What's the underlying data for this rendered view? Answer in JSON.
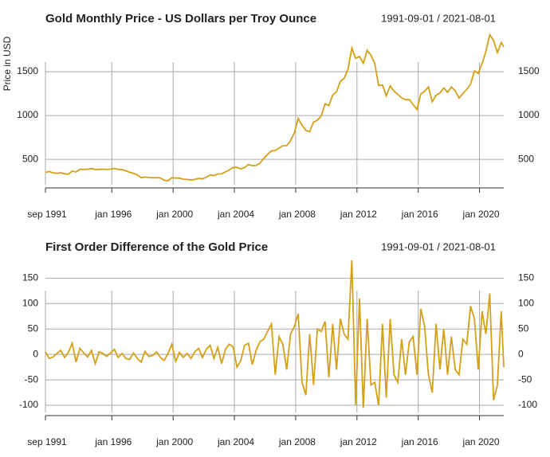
{
  "chart_data": [
    {
      "type": "line",
      "title": "Gold Monthly Price - US Dollars per Troy Ounce",
      "subtitle": "1991-09-01 / 2021-08-01",
      "y_label": "Price in USD",
      "color": "#d4a017",
      "grid": true,
      "x": [
        "1991-09",
        "1991-12",
        "1992-03",
        "1992-06",
        "1992-09",
        "1992-12",
        "1993-03",
        "1993-06",
        "1993-09",
        "1993-12",
        "1994-03",
        "1994-06",
        "1994-09",
        "1994-12",
        "1995-03",
        "1995-06",
        "1995-09",
        "1995-12",
        "1996-03",
        "1996-06",
        "1996-09",
        "1996-12",
        "1997-03",
        "1997-06",
        "1997-09",
        "1997-12",
        "1998-03",
        "1998-06",
        "1998-09",
        "1998-12",
        "1999-03",
        "1999-06",
        "1999-09",
        "1999-12",
        "2000-03",
        "2000-06",
        "2000-09",
        "2000-12",
        "2001-03",
        "2001-06",
        "2001-09",
        "2001-12",
        "2002-03",
        "2002-06",
        "2002-09",
        "2002-12",
        "2003-03",
        "2003-06",
        "2003-09",
        "2003-12",
        "2004-03",
        "2004-06",
        "2004-09",
        "2004-12",
        "2005-03",
        "2005-06",
        "2005-09",
        "2005-12",
        "2006-03",
        "2006-06",
        "2006-09",
        "2006-12",
        "2007-03",
        "2007-06",
        "2007-09",
        "2007-12",
        "2008-03",
        "2008-06",
        "2008-09",
        "2008-12",
        "2009-03",
        "2009-06",
        "2009-09",
        "2009-12",
        "2010-03",
        "2010-06",
        "2010-09",
        "2010-12",
        "2011-03",
        "2011-06",
        "2011-09",
        "2011-12",
        "2012-03",
        "2012-06",
        "2012-09",
        "2012-12",
        "2013-03",
        "2013-06",
        "2013-09",
        "2013-12",
        "2014-03",
        "2014-06",
        "2014-09",
        "2014-12",
        "2015-03",
        "2015-06",
        "2015-09",
        "2015-12",
        "2016-03",
        "2016-06",
        "2016-09",
        "2016-12",
        "2017-03",
        "2017-06",
        "2017-09",
        "2017-12",
        "2018-03",
        "2018-06",
        "2018-09",
        "2018-12",
        "2019-03",
        "2019-06",
        "2019-09",
        "2019-12",
        "2020-03",
        "2020-06",
        "2020-09",
        "2020-12",
        "2021-03",
        "2021-06",
        "2021-08"
      ],
      "values": [
        350,
        361,
        345,
        340,
        345,
        335,
        330,
        365,
        355,
        385,
        385,
        385,
        395,
        383,
        385,
        387,
        384,
        387,
        396,
        385,
        383,
        369,
        352,
        340,
        323,
        290,
        297,
        292,
        289,
        291,
        287,
        261,
        255,
        290,
        285,
        285,
        273,
        271,
        263,
        270,
        283,
        276,
        295,
        321,
        315,
        333,
        334,
        356,
        379,
        407,
        407,
        392,
        405,
        441,
        427,
        430,
        456,
        510,
        557,
        596,
        600,
        629,
        655,
        655,
        712,
        803,
        968,
        889,
        830,
        816,
        925,
        946,
        996,
        1134,
        1113,
        1233,
        1271,
        1390,
        1424,
        1529,
        1771,
        1652,
        1675,
        1596,
        1744,
        1688,
        1592,
        1342,
        1349,
        1225,
        1337,
        1279,
        1241,
        1202,
        1180,
        1182,
        1125,
        1068,
        1246,
        1276,
        1326,
        1157,
        1231,
        1257,
        1315,
        1265,
        1325,
        1282,
        1199,
        1250,
        1300,
        1359,
        1510,
        1480,
        1592,
        1732,
        1922,
        1858,
        1718,
        1834,
        1785
      ],
      "xlim": [
        "1991-09",
        "2021-08"
      ],
      "xticks": [
        {
          "value": "1991-09",
          "label": "sep 1991"
        },
        {
          "value": "1996-01",
          "label": "jan 1996"
        },
        {
          "value": "2000-01",
          "label": "jan 2000"
        },
        {
          "value": "2004-01",
          "label": "jan 2004"
        },
        {
          "value": "2008-01",
          "label": "jan 2008"
        },
        {
          "value": "2012-01",
          "label": "jan 2012"
        },
        {
          "value": "2016-01",
          "label": "jan 2016"
        },
        {
          "value": "2020-01",
          "label": "jan 2020"
        }
      ],
      "ylim": [
        210,
        1955
      ],
      "yticks": [
        500,
        1000,
        1500
      ]
    },
    {
      "type": "line",
      "title": "First Order Difference of the Gold Price",
      "subtitle": "1991-09-01 / 2021-08-01",
      "color": "#d4a017",
      "grid": true,
      "x": [
        "1991-09",
        "1991-12",
        "1992-03",
        "1992-06",
        "1992-09",
        "1992-12",
        "1993-03",
        "1993-06",
        "1993-09",
        "1993-12",
        "1994-03",
        "1994-06",
        "1994-09",
        "1994-12",
        "1995-03",
        "1995-06",
        "1995-09",
        "1995-12",
        "1996-03",
        "1996-06",
        "1996-09",
        "1996-12",
        "1997-03",
        "1997-06",
        "1997-09",
        "1997-12",
        "1998-03",
        "1998-06",
        "1998-09",
        "1998-12",
        "1999-03",
        "1999-06",
        "1999-09",
        "1999-12",
        "2000-03",
        "2000-06",
        "2000-09",
        "2000-12",
        "2001-03",
        "2001-06",
        "2001-09",
        "2001-12",
        "2002-03",
        "2002-06",
        "2002-09",
        "2002-12",
        "2003-03",
        "2003-06",
        "2003-09",
        "2003-12",
        "2004-03",
        "2004-06",
        "2004-09",
        "2004-12",
        "2005-03",
        "2005-06",
        "2005-09",
        "2005-12",
        "2006-03",
        "2006-06",
        "2006-09",
        "2006-12",
        "2007-03",
        "2007-06",
        "2007-09",
        "2007-12",
        "2008-03",
        "2008-06",
        "2008-09",
        "2008-12",
        "2009-03",
        "2009-06",
        "2009-09",
        "2009-12",
        "2010-03",
        "2010-06",
        "2010-09",
        "2010-12",
        "2011-03",
        "2011-06",
        "2011-09",
        "2011-12",
        "2012-03",
        "2012-06",
        "2012-09",
        "2012-12",
        "2013-03",
        "2013-06",
        "2013-09",
        "2013-12",
        "2014-03",
        "2014-06",
        "2014-09",
        "2014-12",
        "2015-03",
        "2015-06",
        "2015-09",
        "2015-12",
        "2016-03",
        "2016-06",
        "2016-09",
        "2016-12",
        "2017-03",
        "2017-06",
        "2017-09",
        "2017-12",
        "2018-03",
        "2018-06",
        "2018-09",
        "2018-12",
        "2019-03",
        "2019-06",
        "2019-09",
        "2019-12",
        "2020-03",
        "2020-06",
        "2020-09",
        "2020-12",
        "2021-03",
        "2021-06",
        "2021-08"
      ],
      "values": [
        5,
        -8,
        -5,
        2,
        8,
        -6,
        4,
        22,
        -15,
        12,
        3,
        -5,
        8,
        -18,
        5,
        2,
        -4,
        3,
        10,
        -6,
        2,
        -8,
        -10,
        3,
        -8,
        -15,
        6,
        -4,
        -2,
        5,
        -6,
        -12,
        2,
        20,
        -14,
        4,
        -6,
        2,
        -8,
        5,
        12,
        -6,
        10,
        18,
        -8,
        14,
        -18,
        10,
        20,
        15,
        -25,
        -12,
        18,
        22,
        -20,
        8,
        25,
        30,
        45,
        60,
        -40,
        35,
        20,
        -30,
        40,
        55,
        80,
        -55,
        -80,
        40,
        -60,
        50,
        45,
        65,
        -45,
        60,
        -30,
        70,
        40,
        30,
        185,
        -100,
        110,
        -105,
        70,
        -60,
        -55,
        -100,
        60,
        -85,
        70,
        -40,
        -55,
        30,
        -40,
        25,
        35,
        -40,
        90,
        55,
        -40,
        -75,
        60,
        -30,
        50,
        -40,
        35,
        -30,
        -40,
        30,
        20,
        95,
        70,
        -30,
        85,
        40,
        120,
        -90,
        -60,
        85,
        -25
      ],
      "xlim": [
        "1991-09",
        "2021-08"
      ],
      "xticks": [
        {
          "value": "1991-09",
          "label": "sep 1991"
        },
        {
          "value": "1996-01",
          "label": "jan 1996"
        },
        {
          "value": "2000-01",
          "label": "jan 2000"
        },
        {
          "value": "2004-01",
          "label": "jan 2004"
        },
        {
          "value": "2008-01",
          "label": "jan 2008"
        },
        {
          "value": "2012-01",
          "label": "jan 2012"
        },
        {
          "value": "2016-01",
          "label": "jan 2016"
        },
        {
          "value": "2020-01",
          "label": "jan 2020"
        }
      ],
      "ylim": [
        -114,
        185
      ],
      "yticks": [
        -100,
        -50,
        0,
        50,
        100,
        150
      ]
    }
  ]
}
